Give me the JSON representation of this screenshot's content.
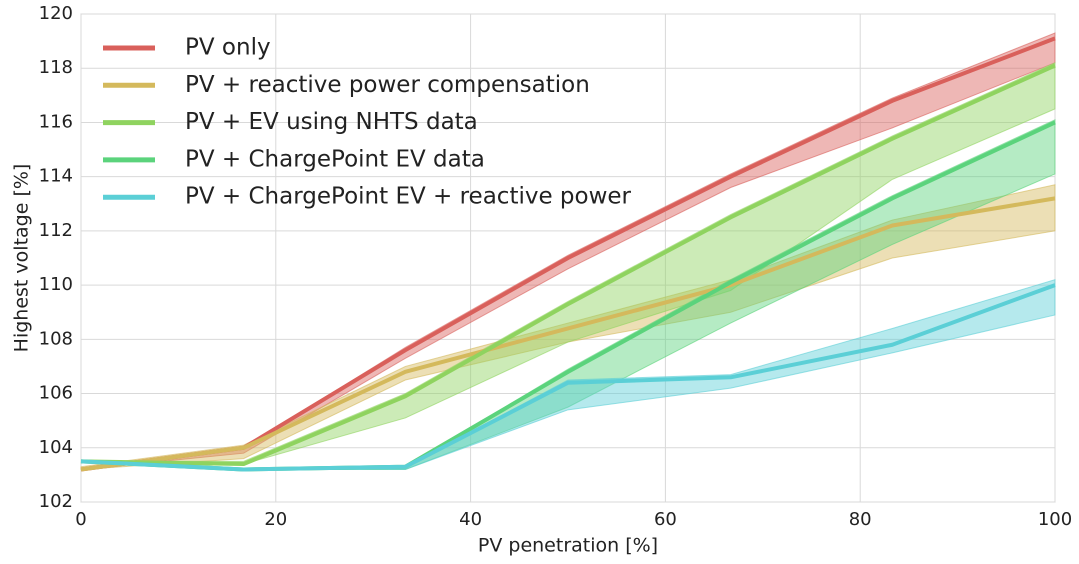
{
  "chart_data": {
    "type": "line",
    "xlabel": "PV penetration [%]",
    "ylabel": "Highest voltage [%]",
    "x": [
      0,
      16.7,
      33.3,
      50,
      66.7,
      83.3,
      100
    ],
    "xlim": [
      0,
      100
    ],
    "xticks": [
      0,
      20,
      40,
      60,
      80,
      100
    ],
    "ylim": [
      102,
      120
    ],
    "yticks": [
      102,
      104,
      106,
      108,
      110,
      112,
      114,
      116,
      118,
      120
    ],
    "grid": true,
    "legend": "upper left",
    "series": [
      {
        "name": "PV only",
        "color": "#d9605b",
        "values": [
          103.2,
          104.0,
          107.6,
          111.0,
          114.0,
          116.8,
          119.1
        ],
        "lower": [
          103.2,
          103.8,
          107.3,
          110.6,
          113.6,
          115.8,
          118.2
        ],
        "upper": [
          103.2,
          104.0,
          107.7,
          111.1,
          114.1,
          116.9,
          119.3
        ]
      },
      {
        "name": "PV + reactive power compensation",
        "color": "#d4b95c",
        "values": [
          103.2,
          104.0,
          106.8,
          108.4,
          110.0,
          112.2,
          113.2
        ],
        "lower": [
          103.2,
          103.6,
          106.5,
          107.9,
          109.0,
          111.0,
          112.0
        ],
        "upper": [
          103.3,
          104.1,
          107.0,
          108.6,
          110.2,
          112.4,
          113.7
        ]
      },
      {
        "name": "PV + EV using NHTS data",
        "color": "#8fd35f",
        "values": [
          103.5,
          103.4,
          105.9,
          109.3,
          112.5,
          115.4,
          118.1
        ],
        "lower": [
          103.5,
          103.4,
          105.1,
          107.9,
          109.8,
          113.9,
          116.5
        ],
        "upper": [
          103.5,
          103.5,
          106.0,
          109.4,
          112.6,
          115.5,
          118.2
        ]
      },
      {
        "name": "PV + ChargePoint EV data",
        "color": "#5bd37c",
        "values": [
          103.5,
          103.2,
          103.3,
          106.8,
          110.1,
          113.2,
          116.0
        ],
        "lower": [
          103.5,
          103.2,
          103.2,
          105.5,
          108.6,
          111.5,
          114.1
        ],
        "upper": [
          103.5,
          103.2,
          103.3,
          106.9,
          110.2,
          113.3,
          116.1
        ]
      },
      {
        "name": "PV + ChargePoint EV + reactive power",
        "color": "#5bcfd6",
        "values": [
          103.5,
          103.2,
          103.3,
          106.4,
          106.6,
          107.8,
          110.0
        ],
        "lower": [
          103.5,
          103.2,
          103.2,
          105.4,
          106.2,
          107.5,
          108.9
        ],
        "upper": [
          103.5,
          103.2,
          103.3,
          106.5,
          106.7,
          108.4,
          110.2
        ]
      }
    ]
  }
}
